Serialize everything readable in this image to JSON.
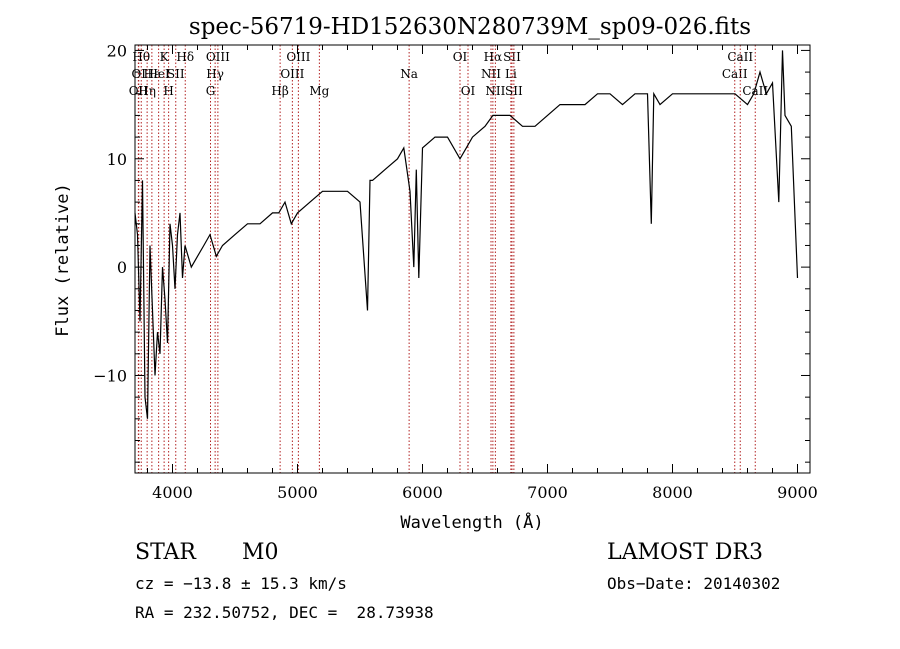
{
  "chart_data": {
    "type": "line",
    "title": "spec-56719-HD152630N280739M_sp09-026.fits",
    "xlabel": "Wavelength (Å)",
    "ylabel": "Flux (relative)",
    "xlim": [
      3700,
      9100
    ],
    "ylim": [
      -19,
      20.5
    ],
    "x_ticks": [
      4000,
      5000,
      6000,
      7000,
      8000,
      9000
    ],
    "y_ticks": [
      -10,
      0,
      10,
      20
    ],
    "x_tick_labels": [
      "4000",
      "5000",
      "6000",
      "7000",
      "8000",
      "9000"
    ],
    "y_tick_labels": [
      "−10",
      "0",
      "10",
      "20"
    ],
    "grid": false,
    "series": [
      {
        "name": "spectrum",
        "x": [
          3700,
          3720,
          3740,
          3760,
          3780,
          3800,
          3820,
          3840,
          3860,
          3880,
          3900,
          3920,
          3940,
          3960,
          3980,
          4000,
          4020,
          4040,
          4060,
          4080,
          4100,
          4150,
          4200,
          4250,
          4300,
          4350,
          4400,
          4500,
          4600,
          4700,
          4800,
          4850,
          4900,
          4950,
          5000,
          5100,
          5200,
          5300,
          5400,
          5500,
          5560,
          5580,
          5600,
          5700,
          5800,
          5850,
          5900,
          5930,
          5950,
          5970,
          6000,
          6100,
          6200,
          6300,
          6350,
          6400,
          6500,
          6563,
          6600,
          6700,
          6800,
          6900,
          7000,
          7100,
          7200,
          7300,
          7400,
          7500,
          7600,
          7700,
          7800,
          7830,
          7850,
          7900,
          8000,
          8100,
          8200,
          8300,
          8400,
          8500,
          8600,
          8650,
          8700,
          8750,
          8800,
          8850,
          8880,
          8900,
          8950,
          9000
        ],
        "y": [
          5,
          3,
          -5,
          8,
          -12,
          -14,
          2,
          -4,
          -10,
          -6,
          -8,
          0,
          -3,
          -7,
          4,
          2,
          -2,
          3,
          5,
          -1,
          2,
          0,
          1,
          2,
          3,
          1,
          2,
          3,
          4,
          4,
          5,
          5,
          6,
          4,
          5,
          6,
          7,
          7,
          7,
          6,
          -4,
          8,
          8,
          9,
          10,
          11,
          7,
          0,
          9,
          -1,
          11,
          12,
          12,
          10,
          11,
          12,
          13,
          14,
          14,
          14,
          13,
          13,
          14,
          15,
          15,
          15,
          16,
          16,
          15,
          16,
          16,
          4,
          16,
          15,
          16,
          16,
          16,
          16,
          16,
          16,
          15,
          16,
          18,
          16,
          17,
          6,
          20,
          14,
          13,
          -1
        ]
      }
    ],
    "line_marks": [
      {
        "wl": 3727,
        "label": "OII",
        "row": 2
      },
      {
        "wl": 3730,
        "label": "OI",
        "row": 1
      },
      {
        "wl": 3750,
        "label": "Hθ",
        "row": 0
      },
      {
        "wl": 3797,
        "label": "Hη",
        "row": 2
      },
      {
        "wl": 3835,
        "label": "Hε",
        "row": 1
      },
      {
        "wl": 3889,
        "label": "HeI",
        "row": 1
      },
      {
        "wl": 3933,
        "label": "K",
        "row": 0
      },
      {
        "wl": 3969,
        "label": "H",
        "row": 2
      },
      {
        "wl": 4026,
        "label": "SII",
        "row": 1
      },
      {
        "wl": 4102,
        "label": "Hδ",
        "row": 0
      },
      {
        "wl": 4304,
        "label": "G",
        "row": 2
      },
      {
        "wl": 4341,
        "label": "Hγ",
        "row": 1
      },
      {
        "wl": 4363,
        "label": "OIII",
        "row": 0
      },
      {
        "wl": 4861,
        "label": "Hβ",
        "row": 2
      },
      {
        "wl": 4959,
        "label": "OIII",
        "row": 1
      },
      {
        "wl": 5007,
        "label": "OIII",
        "row": 0
      },
      {
        "wl": 5175,
        "label": "Mg",
        "row": 2
      },
      {
        "wl": 5893,
        "label": "Na",
        "row": 1
      },
      {
        "wl": 6300,
        "label": "OI",
        "row": 0
      },
      {
        "wl": 6364,
        "label": "OI",
        "row": 2
      },
      {
        "wl": 6548,
        "label": "NII",
        "row": 1
      },
      {
        "wl": 6563,
        "label": "Hα",
        "row": 0
      },
      {
        "wl": 6583,
        "label": "NII",
        "row": 2
      },
      {
        "wl": 6707,
        "label": "Li",
        "row": 1
      },
      {
        "wl": 6716,
        "label": "SII",
        "row": 0
      },
      {
        "wl": 6731,
        "label": "SII",
        "row": 2
      },
      {
        "wl": 8498,
        "label": "CaII",
        "row": 1
      },
      {
        "wl": 8542,
        "label": "CaII",
        "row": 0
      },
      {
        "wl": 8662,
        "label": "CaII",
        "row": 2
      }
    ]
  },
  "info": {
    "class": "STAR",
    "subclass": "M0",
    "survey": "LAMOST DR3",
    "cz": "cz = −13.8 ± 15.3 km/s",
    "obs_date": "Obs−Date: 20140302",
    "radec": "RA = 232.50752, DEC =  28.73938"
  }
}
